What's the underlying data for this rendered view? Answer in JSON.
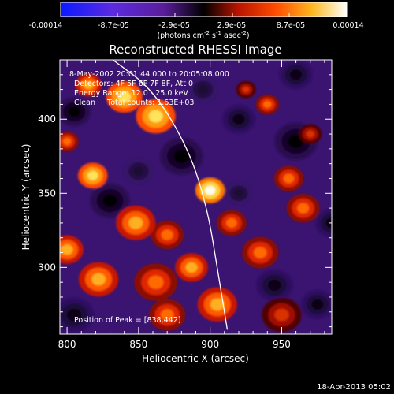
{
  "colorbar": {
    "tick_labels": [
      "-0.00014",
      "-8.7e-05",
      "-2.9e-05",
      "2.9e-05",
      "8.7e-05",
      "0.00014"
    ],
    "unit_text": "(photons cm",
    "unit_sup1": "-2",
    "unit_mid1": " s",
    "unit_sup2": "-1",
    "unit_mid2": " asec",
    "unit_sup3": "-2",
    "unit_end": ")"
  },
  "chart_data": {
    "type": "heatmap",
    "title": "Reconstructed RHESSI Image",
    "xlabel": "Heliocentric X (arcsec)",
    "ylabel": "Heliocentric Y (arcsec)",
    "xlim": [
      795,
      985
    ],
    "ylim": [
      255,
      440
    ],
    "xticks": [
      800,
      850,
      900,
      950
    ],
    "yticks": [
      300,
      350,
      400
    ],
    "colorbar_range": [
      -0.00014,
      0.00014
    ],
    "colormap": "blue-purple-black-red-orange-yellow-white",
    "annotations": [
      "8-May-2002 20:01:44.000 to 20:05:08.000",
      "Detectors: 4F 5F 6F 7F 8F, Att 0",
      "Energy Range: 12.0 - 25.0 keV",
      "Clean     Total counts: 1.63E+03"
    ],
    "peak_label": "Position of Peak = [838,442]",
    "limb_points": [
      [
        832,
        440
      ],
      [
        860,
        420
      ],
      [
        885,
        380
      ],
      [
        898,
        340
      ],
      [
        905,
        300
      ],
      [
        912,
        258
      ]
    ],
    "sources": [
      {
        "x": 900,
        "y": 352,
        "v": 1.0,
        "r": 9
      },
      {
        "x": 840,
        "y": 415,
        "v": 0.9,
        "r": 11
      },
      {
        "x": 815,
        "y": 423,
        "v": 0.75,
        "r": 8
      },
      {
        "x": 862,
        "y": 402,
        "v": 0.8,
        "r": 12
      },
      {
        "x": 818,
        "y": 362,
        "v": 0.85,
        "r": 9
      },
      {
        "x": 848,
        "y": 330,
        "v": 0.65,
        "r": 12
      },
      {
        "x": 800,
        "y": 312,
        "v": 0.7,
        "r": 10
      },
      {
        "x": 822,
        "y": 292,
        "v": 0.75,
        "r": 12
      },
      {
        "x": 862,
        "y": 290,
        "v": 0.6,
        "r": 13
      },
      {
        "x": 870,
        "y": 322,
        "v": 0.55,
        "r": 10
      },
      {
        "x": 887,
        "y": 300,
        "v": 0.7,
        "r": 10
      },
      {
        "x": 935,
        "y": 310,
        "v": 0.6,
        "r": 11
      },
      {
        "x": 915,
        "y": 330,
        "v": 0.5,
        "r": 9
      },
      {
        "x": 965,
        "y": 340,
        "v": 0.55,
        "r": 10
      },
      {
        "x": 955,
        "y": 360,
        "v": 0.55,
        "r": 9
      },
      {
        "x": 905,
        "y": 275,
        "v": 0.65,
        "r": 12
      },
      {
        "x": 870,
        "y": 268,
        "v": 0.55,
        "r": 11
      },
      {
        "x": 950,
        "y": 268,
        "v": 0.45,
        "r": 12
      },
      {
        "x": 880,
        "y": 245,
        "v": 0.6,
        "r": 10
      },
      {
        "x": 940,
        "y": 410,
        "v": 0.5,
        "r": 7
      },
      {
        "x": 925,
        "y": 420,
        "v": 0.45,
        "r": 6
      },
      {
        "x": 800,
        "y": 385,
        "v": 0.5,
        "r": 7
      },
      {
        "x": 970,
        "y": 390,
        "v": 0.45,
        "r": 7
      },
      {
        "x": 830,
        "y": 345,
        "v": -0.8,
        "r": 12
      },
      {
        "x": 880,
        "y": 375,
        "v": -0.7,
        "r": 13
      },
      {
        "x": 805,
        "y": 405,
        "v": -0.75,
        "r": 10
      },
      {
        "x": 960,
        "y": 385,
        "v": -0.7,
        "r": 13
      },
      {
        "x": 920,
        "y": 400,
        "v": -0.55,
        "r": 10
      },
      {
        "x": 805,
        "y": 268,
        "v": -0.6,
        "r": 12
      },
      {
        "x": 945,
        "y": 288,
        "v": -0.6,
        "r": 11
      },
      {
        "x": 975,
        "y": 275,
        "v": -0.55,
        "r": 10
      },
      {
        "x": 920,
        "y": 350,
        "v": -0.45,
        "r": 8
      },
      {
        "x": 895,
        "y": 420,
        "v": -0.5,
        "r": 9
      },
      {
        "x": 985,
        "y": 330,
        "v": -0.6,
        "r": 10
      },
      {
        "x": 960,
        "y": 430,
        "v": -0.55,
        "r": 10
      },
      {
        "x": 850,
        "y": 365,
        "v": -0.5,
        "r": 9
      }
    ]
  },
  "footer": {
    "timestamp": "18-Apr-2013 05:02"
  }
}
